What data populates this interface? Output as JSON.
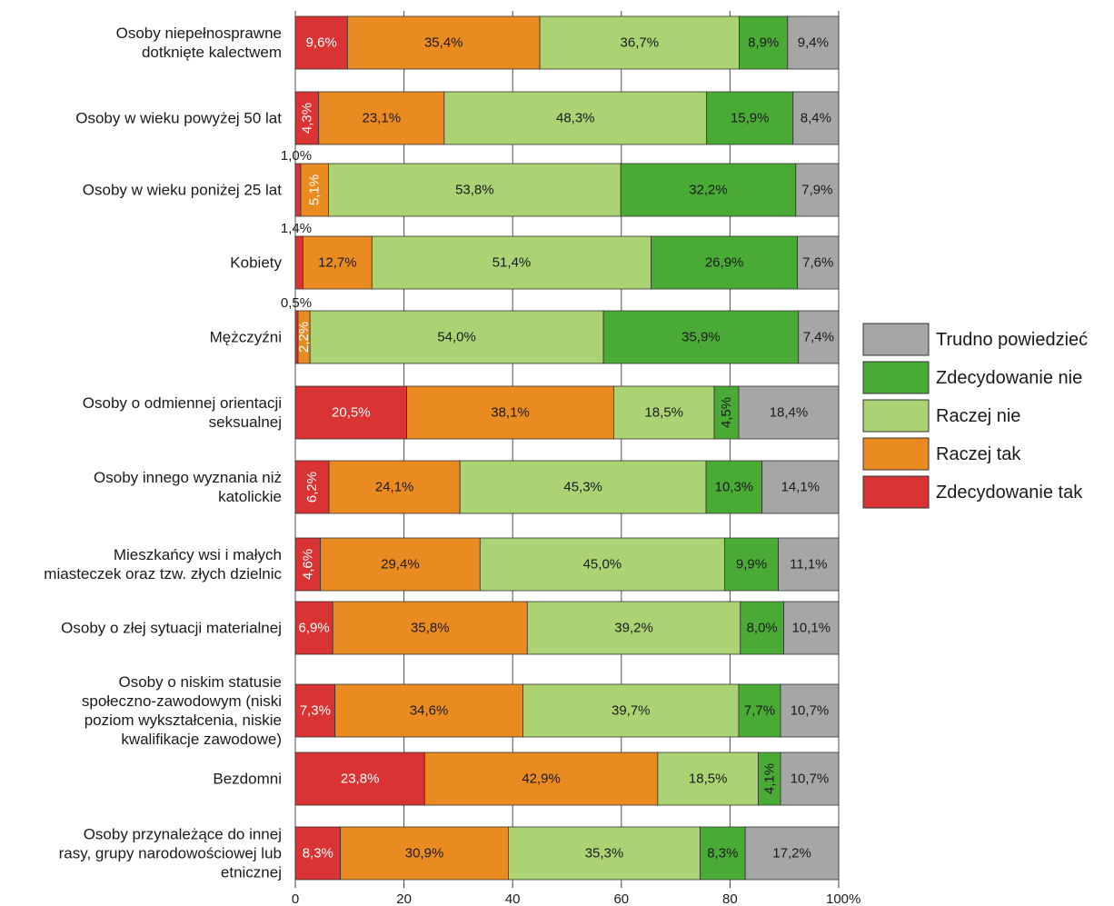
{
  "chart_data": {
    "type": "bar",
    "orientation": "horizontal",
    "stacked": true,
    "title": "",
    "xlabel": "",
    "ylabel": "",
    "xlim": [
      0,
      100
    ],
    "x_ticks": [
      "0",
      "20",
      "40",
      "60",
      "80",
      "100%"
    ],
    "grid": "vertical",
    "legend_position": "right",
    "categories": [
      [
        "Osoby niepełnosprawne",
        "dotknięte kalectwem"
      ],
      [
        "Osoby w wieku powyżej 50 lat"
      ],
      [
        "Osoby w wieku poniżej 25 lat"
      ],
      [
        "Kobiety"
      ],
      [
        "Mężczyźni"
      ],
      [
        "Osoby o odmiennej orientacji",
        "seksualnej"
      ],
      [
        "Osoby innego wyznania niż",
        "katolickie"
      ],
      [
        "Mieszkańcy wsi i małych",
        "miasteczek oraz tzw. złych dzielnic"
      ],
      [
        "Osoby o złej sytuacji materialnej"
      ],
      [
        "Osoby o niskim statusie",
        "społeczno-zawodowym (niski",
        "poziom wykształcenia, niskie",
        "kwalifikacje zawodowe)"
      ],
      [
        "Bezdomni"
      ],
      [
        "Osoby przynależące do innej",
        "rasy, grupy narodowościowej lub",
        "etnicznej"
      ]
    ],
    "series": [
      {
        "name": "Zdecydowanie tak",
        "color": "#d93333",
        "values": [
          9.6,
          4.3,
          1.0,
          1.4,
          0.5,
          20.5,
          6.2,
          4.6,
          6.9,
          7.3,
          23.8,
          8.3
        ],
        "labels": [
          "9,6%",
          "4,3%",
          "1,0%",
          "1,4%",
          "0,5%",
          "20,5%",
          "6,2%",
          "4,6%",
          "6,9%",
          "7,3%",
          "23,8%",
          "8,3%"
        ]
      },
      {
        "name": "Raczej tak",
        "color": "#ea8b22",
        "values": [
          35.4,
          23.1,
          5.1,
          12.7,
          2.2,
          38.1,
          24.1,
          29.4,
          35.8,
          34.6,
          42.9,
          30.9
        ],
        "labels": [
          "35,4%",
          "23,1%",
          "5,1%",
          "12,7%",
          "2,2%",
          "38,1%",
          "24,1%",
          "29,4%",
          "35,8%",
          "34,6%",
          "42,9%",
          "30,9%"
        ]
      },
      {
        "name": "Raczej nie",
        "color": "#abd374",
        "values": [
          36.7,
          48.3,
          53.8,
          51.4,
          54.0,
          18.5,
          45.3,
          45.0,
          39.2,
          39.7,
          18.5,
          35.3
        ],
        "labels": [
          "36,7%",
          "48,3%",
          "53,8%",
          "51,4%",
          "54,0%",
          "18,5%",
          "45,3%",
          "45,0%",
          "39,2%",
          "39,7%",
          "18,5%",
          "35,3%"
        ]
      },
      {
        "name": "Zdecydowanie nie",
        "color": "#49ab35",
        "values": [
          8.9,
          15.9,
          32.2,
          26.9,
          35.9,
          4.5,
          10.3,
          9.9,
          8.0,
          7.7,
          4.1,
          8.3
        ],
        "labels": [
          "8,9%",
          "15,9%",
          "32,2%",
          "26,9%",
          "35,9%",
          "4,5%",
          "10,3%",
          "9,9%",
          "8,0%",
          "7,7%",
          "4,1%",
          "8,3%"
        ]
      },
      {
        "name": "Trudno powiedzieć",
        "color": "#a6a6a6",
        "values": [
          9.4,
          8.4,
          7.9,
          7.6,
          7.4,
          18.4,
          14.1,
          11.1,
          10.1,
          10.7,
          10.7,
          17.2
        ],
        "labels": [
          "9,4%",
          "8,4%",
          "7,9%",
          "7,6%",
          "7,4%",
          "18,4%",
          "14,1%",
          "11,1%",
          "10,1%",
          "10,7%",
          "10,7%",
          "17,2%"
        ]
      }
    ],
    "legend_order": [
      "Trudno powiedzieć",
      "Zdecydowanie nie",
      "Raczej nie",
      "Raczej tak",
      "Zdecydowanie tak"
    ]
  }
}
